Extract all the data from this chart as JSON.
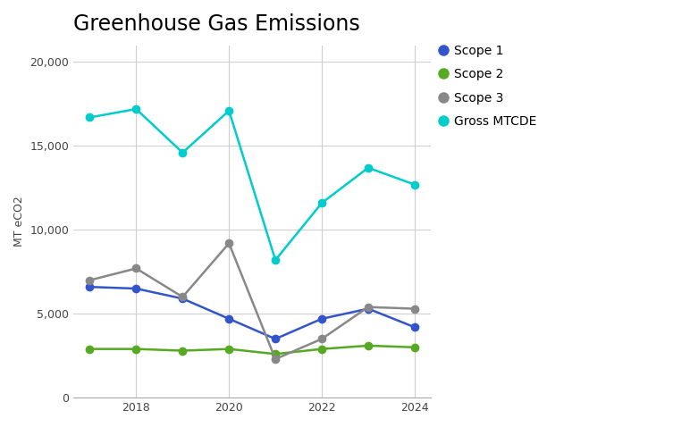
{
  "title": "Greenhouse Gas Emissions",
  "ylabel": "MT eCO2",
  "years": [
    2017,
    2018,
    2019,
    2020,
    2021,
    2022,
    2023,
    2024
  ],
  "scope1": [
    6600,
    6500,
    5900,
    4700,
    3500,
    4700,
    5300,
    4200
  ],
  "scope2": [
    2900,
    2900,
    2800,
    2900,
    2600,
    2900,
    3100,
    3000
  ],
  "scope3": [
    7000,
    7700,
    6000,
    9200,
    2300,
    3500,
    5400,
    5300
  ],
  "gross": [
    16700,
    17200,
    14600,
    17100,
    8200,
    11600,
    13700,
    12700
  ],
  "colors": {
    "scope1": "#3355cc",
    "scope2": "#55aa22",
    "scope3": "#888888",
    "gross": "#00cccc"
  },
  "legend_labels": [
    "Scope 1",
    "Scope 2",
    "Scope 3",
    "Gross MTCDE"
  ],
  "ylim": [
    0,
    21000
  ],
  "yticks": [
    0,
    5000,
    10000,
    15000,
    20000
  ],
  "xticks": [
    2018,
    2020,
    2022,
    2024
  ],
  "background_color": "#ffffff",
  "grid_color": "#d0d0d0",
  "title_fontsize": 17,
  "axis_label_fontsize": 9,
  "tick_fontsize": 9,
  "legend_fontsize": 10,
  "linewidth": 1.8,
  "markersize": 6
}
